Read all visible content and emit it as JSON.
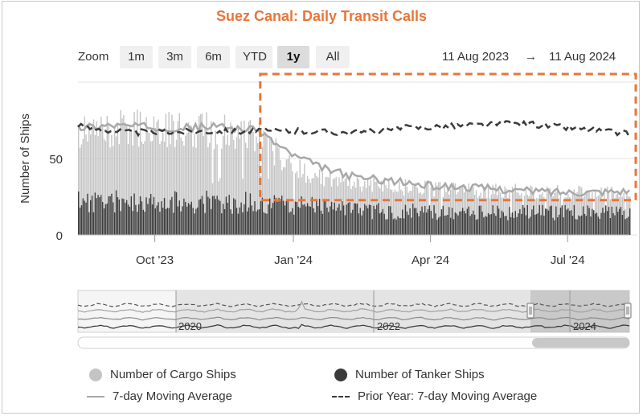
{
  "chart_data": {
    "type": "bar",
    "title": "Suez Canal: Daily Transit Calls",
    "ylabel": "Number of Ships",
    "xlabel": "",
    "ylim": [
      0,
      100
    ],
    "yticks": [
      0,
      50
    ],
    "x_start": "2023-08-11",
    "x_end": "2024-08-11",
    "xticks": [
      {
        "date": "2023-10-01",
        "label": "Oct '23"
      },
      {
        "date": "2024-01-01",
        "label": "Jan '24"
      },
      {
        "date": "2024-04-01",
        "label": "Apr '24"
      },
      {
        "date": "2024-07-01",
        "label": "Jul '24"
      }
    ],
    "series": [
      {
        "name": "Number of Cargo Ships",
        "type": "bar",
        "color": "#c4c4c4",
        "anchors": [
          [
            "2023-08-11",
            68
          ],
          [
            "2023-09-15",
            72
          ],
          [
            "2023-10-20",
            70
          ],
          [
            "2023-11-20",
            70
          ],
          [
            "2023-12-10",
            65
          ],
          [
            "2023-12-20",
            55
          ],
          [
            "2024-01-05",
            44
          ],
          [
            "2024-01-20",
            38
          ],
          [
            "2024-02-10",
            35
          ],
          [
            "2024-03-15",
            32
          ],
          [
            "2024-04-20",
            30
          ],
          [
            "2024-06-01",
            29
          ],
          [
            "2024-07-15",
            28
          ],
          [
            "2024-08-11",
            29
          ]
        ]
      },
      {
        "name": "Number of Tanker Ships",
        "type": "bar",
        "color": "#3a3a3a",
        "anchors": [
          [
            "2023-08-11",
            26
          ],
          [
            "2023-12-01",
            25
          ],
          [
            "2024-03-01",
            18
          ],
          [
            "2024-08-11",
            17
          ]
        ]
      },
      {
        "name": "7-day Moving Average",
        "type": "line",
        "color": "#a8a8a8",
        "anchors": [
          [
            "2023-08-11",
            70
          ],
          [
            "2023-09-01",
            72
          ],
          [
            "2023-09-20",
            71
          ],
          [
            "2023-10-15",
            70
          ],
          [
            "2023-11-15",
            71
          ],
          [
            "2023-12-10",
            68
          ],
          [
            "2023-12-20",
            60
          ],
          [
            "2024-01-01",
            52
          ],
          [
            "2024-01-20",
            44
          ],
          [
            "2024-02-10",
            38
          ],
          [
            "2024-03-01",
            36
          ],
          [
            "2024-04-01",
            32
          ],
          [
            "2024-05-01",
            31
          ],
          [
            "2024-06-01",
            29
          ],
          [
            "2024-07-01",
            28
          ],
          [
            "2024-08-11",
            29
          ]
        ]
      },
      {
        "name": "Prior Year: 7-day Moving Average",
        "type": "line-dashed",
        "color": "#3a3a3a",
        "anchors": [
          [
            "2023-08-11",
            71
          ],
          [
            "2023-09-15",
            67
          ],
          [
            "2023-11-01",
            68
          ],
          [
            "2024-01-01",
            68
          ],
          [
            "2024-02-15",
            67
          ],
          [
            "2024-03-15",
            70
          ],
          [
            "2024-05-01",
            72
          ],
          [
            "2024-06-01",
            73
          ],
          [
            "2024-07-15",
            69
          ],
          [
            "2024-08-11",
            66
          ]
        ]
      }
    ],
    "legend_position": "bottom",
    "navigator": {
      "labels": [
        "2020",
        "2022",
        "2024"
      ]
    }
  },
  "zoom": {
    "label": "Zoom",
    "buttons": [
      "1m",
      "3m",
      "6m",
      "YTD",
      "1y",
      "All"
    ],
    "selected": "1y"
  },
  "range_display": {
    "from": "11 Aug 2023",
    "arrow": "→",
    "to": "11 Aug 2024"
  },
  "annotation": {
    "color": "#e8763a",
    "start": "2023-12-10",
    "end": "2024-08-11",
    "y_low": 28,
    "y_high": 100
  },
  "colors": {
    "accent": "#e8763a"
  }
}
